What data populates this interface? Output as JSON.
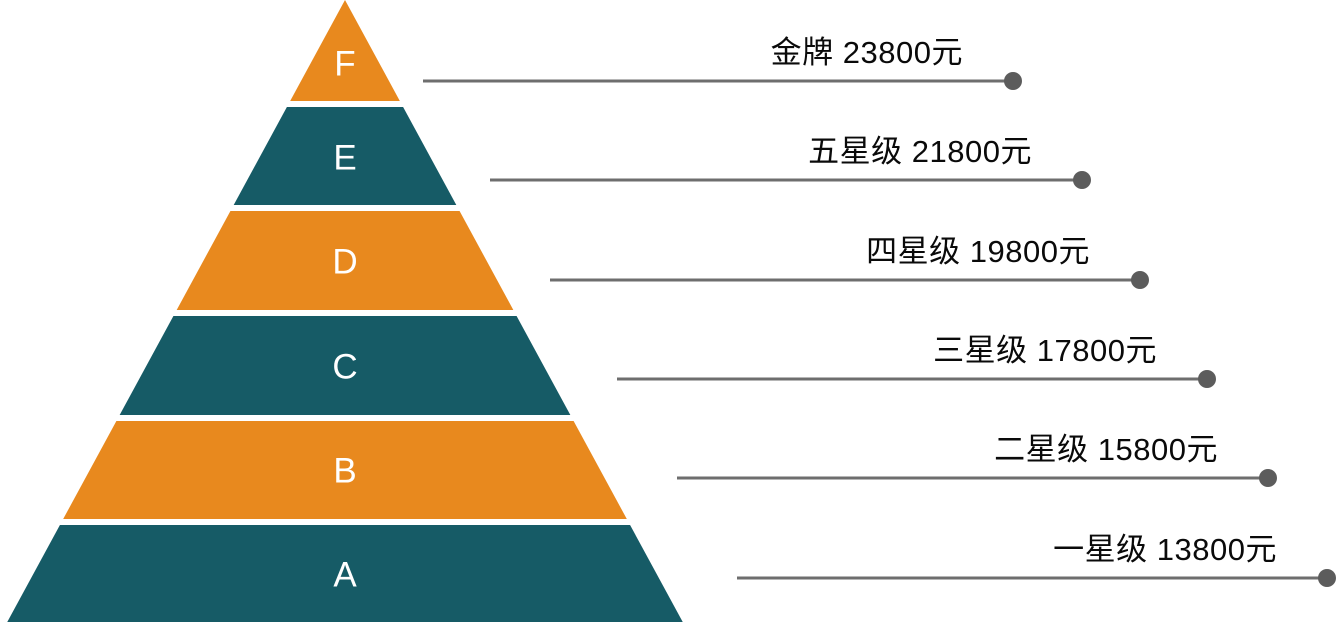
{
  "diagram": {
    "type": "pyramid",
    "levels": [
      {
        "letter": "F",
        "tier": "金牌",
        "price": "23800元",
        "fill": "#E8891E"
      },
      {
        "letter": "E",
        "tier": "五星级",
        "price": "21800元",
        "fill": "#165B66"
      },
      {
        "letter": "D",
        "tier": "四星级",
        "price": "19800元",
        "fill": "#E8891E"
      },
      {
        "letter": "C",
        "tier": "三星级",
        "price": "17800元",
        "fill": "#165B66"
      },
      {
        "letter": "B",
        "tier": "二星级",
        "price": "15800元",
        "fill": "#E8891E"
      },
      {
        "letter": "A",
        "tier": "一星级",
        "price": "13800元",
        "fill": "#165B66"
      }
    ],
    "colors": {
      "orange": "#E8891E",
      "teal": "#165B66",
      "leader_line": "#6E6E6E",
      "leader_dot": "#5C5C5C",
      "level_letter": "#FFFFFF",
      "label_text": "#0A0A0A",
      "background": "#FFFFFF"
    }
  }
}
